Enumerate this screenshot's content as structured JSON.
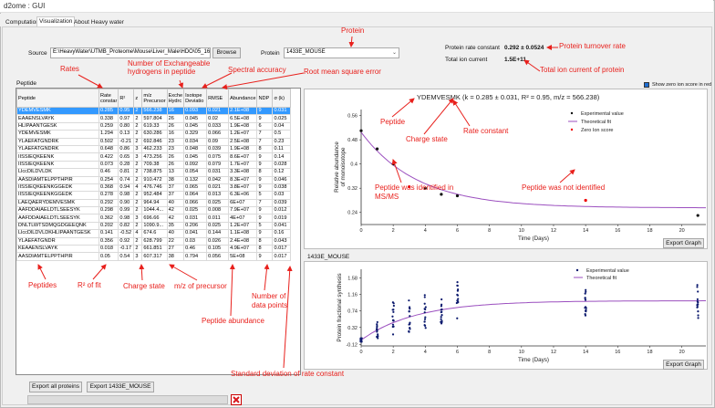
{
  "window": {
    "title": "d2ome : GUI"
  },
  "tabs": [
    {
      "label": "Computation",
      "active": false
    },
    {
      "label": "Visualization",
      "active": true
    },
    {
      "label": "About Heavy water",
      "active": false
    }
  ],
  "source": {
    "label": "Source",
    "path": "E:\\HeavyWater\\UTMB_Proteome\\Mouse\\Liver_Male\\HDO\\05_16_",
    "browse_label": "Browse"
  },
  "protein": {
    "label": "Protein",
    "selected": "1433E_MOUSE",
    "rate_label": "Protein rate constant",
    "rate_value": "0.292 ± 0.0524",
    "ion_label": "Total ion current",
    "ion_value": "1.5E+11"
  },
  "peptide_section": {
    "label": "Peptide"
  },
  "table": {
    "columns": [
      "Peptide",
      "Rate constar",
      "R²",
      "z",
      "m/z Precursor",
      "Exche Hydrc",
      "Isotope Deviatio",
      "RMSE",
      "Abundance",
      "NDP",
      "σ (k)"
    ],
    "rows": [
      [
        "YDEMVESMK",
        "0.285",
        "0.95",
        "2",
        "566.238",
        "16",
        "0.093",
        "0.021",
        "2.1E+08",
        "9",
        "0.031"
      ],
      [
        "EAAENSLVAYK",
        "0.338",
        "0.97",
        "2",
        "597.804",
        "26",
        "0.045",
        "0.02",
        "6.5E+08",
        "9",
        "0.025"
      ],
      [
        "HLIPAANTGESK",
        "0.259",
        "0.80",
        "2",
        "619.33",
        "26",
        "0.045",
        "0.033",
        "1.9E+08",
        "6",
        "0.04"
      ],
      [
        "YDEMVESMK",
        "1.294",
        "0.13",
        "2",
        "630.286",
        "16",
        "0.329",
        "0.066",
        "1.2E+07",
        "7",
        "0.5"
      ],
      [
        "YLAEFATGNDRK",
        "0.502",
        "-0.21",
        "2",
        "692.846",
        "23",
        "0.034",
        "0.09",
        "2.5E+08",
        "7",
        "0.23"
      ],
      [
        "YLAEFATGNDRK",
        "0.648",
        "0.86",
        "3",
        "462.233",
        "23",
        "0.048",
        "0.039",
        "1.9E+08",
        "8",
        "0.11"
      ],
      [
        "IISSIEQKEENK",
        "0.422",
        "0.65",
        "3",
        "473.256",
        "26",
        "0.045",
        "0.075",
        "8.6E+07",
        "9",
        "0.14"
      ],
      [
        "IISSIEQKEENK",
        "0.073",
        "0.28",
        "2",
        "709.38",
        "26",
        "0.092",
        "0.079",
        "1.7E+07",
        "9",
        "0.028"
      ],
      [
        "LlccDlLDVLDK",
        "0.46",
        "0.81",
        "2",
        "738.875",
        "13",
        "0.054",
        "0.031",
        "3.3E+08",
        "8",
        "0.12"
      ],
      [
        "AASDIAMTELPPTHPIR",
        "0.254",
        "0.74",
        "2",
        "910.472",
        "38",
        "0.132",
        "0.042",
        "8.3E+07",
        "9",
        "0.046"
      ],
      [
        "IISSIEQKEENKGGEDK",
        "0.368",
        "0.94",
        "4",
        "476.746",
        "37",
        "0.065",
        "0.021",
        "3.8E+07",
        "9",
        "0.038"
      ],
      [
        "IISSIEQKEENKGGEDK",
        "0.278",
        "0.98",
        "2",
        "952.484",
        "37",
        "0.064",
        "0.013",
        "6.3E+06",
        "5",
        "0.03"
      ],
      [
        "LAEQAERYDEMVESMK",
        "0.292",
        "0.90",
        "2",
        "964.94",
        "40",
        "0.066",
        "0.025",
        "6E+07",
        "7",
        "0.039"
      ],
      [
        "AAFDDAIAELDTLSEESYK",
        "0.298",
        "0.99",
        "2",
        "1044.4...",
        "42",
        "0.025",
        "0.008",
        "7.9E+07",
        "9",
        "0.012"
      ],
      [
        "AAFDDAIAELDTLSEESYK",
        "0.362",
        "0.98",
        "3",
        "696.66",
        "42",
        "0.031",
        "0.011",
        "4E+07",
        "9",
        "0.019"
      ],
      [
        "DNLTLWTSDMQGDGEEQNK",
        "0.202",
        "0.82",
        "2",
        "1090.9...",
        "35",
        "0.206",
        "0.025",
        "1.2E+07",
        "5",
        "0.041"
      ],
      [
        "LlccDlLDVLDKHLIPAANTGESK",
        "0.141",
        "-0.52",
        "4",
        "674.6",
        "40",
        "0.041",
        "0.144",
        "1.1E+08",
        "9",
        "0.16"
      ],
      [
        "YLAEFATGNDR",
        "0.356",
        "0.92",
        "2",
        "628.799",
        "22",
        "0.03",
        "0.026",
        "2.4E+08",
        "8",
        "0.043"
      ],
      [
        "KEAAENSLVAYK",
        "0.018",
        "-0.17",
        "2",
        "661.851",
        "27",
        "0.46",
        "0.105",
        "4.9E+07",
        "8",
        "0.017"
      ],
      [
        "AASDIAMTELPPTHPIR",
        "0.05",
        "0.54",
        "3",
        "607.317",
        "38",
        "0.794",
        "0.056",
        "5E+08",
        "9",
        "0.017"
      ]
    ]
  },
  "zero_ion_checkbox": {
    "label": "Show zero ion score in red",
    "checked": true
  },
  "plot1": {
    "title": "YDEMVESMK",
    "subtitle": " (k = 0.285 ± 0.031, R² = 0.95, m/z = 566.238)",
    "legend": [
      "Experimental value",
      "Theoretical fit",
      "Zero Ion score"
    ],
    "export_label": "Export Graph"
  },
  "plot2": {
    "title": "1433E_MOUSE",
    "legend": [
      "Experimental value",
      "Theoretical fit"
    ],
    "export_label": "Export Graph"
  },
  "buttons": {
    "export_all": "Export all proteins",
    "export_protein": "Export 1433E_MOUSE"
  },
  "annotations": {
    "protein": "Protein",
    "turnover": "Protein turnover rate",
    "total_ion": "Total ion current of protein",
    "rates": "Rates",
    "exch_h": "Number of Exchangeable hydrogens in peptide",
    "spectral": "Spectral accuracy",
    "rmse": "Root mean square error",
    "peptide": "Peptide",
    "charge": "Charge state",
    "rate_constant": "Rate constant",
    "identified": "Peptide was identified in MS/MS",
    "not_identified": "Peptide was not identified",
    "peptides": "Peptides",
    "r2": "R² of fit",
    "charge2": "Charge state",
    "mz": "m/z of precursor",
    "abundance": "Peptide abundance",
    "ndp": "Number of data points",
    "stddev": "Standard deviation of rate constant"
  },
  "colors": {
    "accent_red": "#e8201c",
    "selection": "#3399ff",
    "fit_line": "#9b4fbf",
    "points": "#0c1a6e"
  },
  "chart_data": [
    {
      "type": "scatter",
      "title": "YDEMVESMK (k = 0.285 ± 0.031, R² = 0.95, m/z = 566.238)",
      "xlabel": "Time (Days)",
      "ylabel": "Relative abundance of monoisotope",
      "xlim": [
        0,
        21.5
      ],
      "ylim": [
        0.2,
        0.58
      ],
      "xticks": [
        0,
        2,
        4,
        6,
        8,
        10,
        12,
        14,
        16,
        18,
        20
      ],
      "yticks": [
        0.24,
        0.32,
        0.4,
        0.48,
        0.56
      ],
      "series": [
        {
          "name": "Experimental value",
          "x": [
            0,
            1,
            2,
            4,
            5,
            6,
            21
          ],
          "y": [
            0.51,
            0.45,
            0.4,
            0.32,
            0.3,
            0.295,
            0.23
          ]
        },
        {
          "name": "Zero Ion score",
          "x": [
            3,
            14
          ],
          "y": [
            0.325,
            0.28
          ]
        }
      ],
      "fit": {
        "name": "Theoretical fit",
        "start": 0.505,
        "end": 0.255,
        "k": 0.285
      }
    },
    {
      "type": "scatter",
      "title": "1433E_MOUSE",
      "xlabel": "Time (Days)",
      "ylabel": "Protein fractional synthesis",
      "xlim": [
        0,
        21.5
      ],
      "ylim": [
        -0.15,
        1.8
      ],
      "xticks": [
        0,
        2,
        4,
        6,
        8,
        10,
        12,
        14,
        16,
        18,
        20
      ],
      "yticks": [
        -0.12,
        0.32,
        0.74,
        1.16,
        1.58
      ],
      "yticklabels": [
        "-0.12",
        "0.32",
        "0.74",
        "1.16",
        "1.58"
      ],
      "series": [
        {
          "name": "Experimental value",
          "x_groups": [
            0,
            1,
            2,
            3,
            4,
            5,
            6,
            14,
            21
          ],
          "spread": [
            [
              -0.05,
              0.05
            ],
            [
              0.0,
              0.6
            ],
            [
              0.1,
              1.0
            ],
            [
              0.2,
              1.1
            ],
            [
              0.3,
              1.3
            ],
            [
              0.4,
              1.1
            ],
            [
              0.5,
              1.5
            ],
            [
              0.6,
              1.3
            ],
            [
              0.5,
              1.5
            ]
          ]
        }
      ],
      "fit": {
        "name": "Theoretical fit",
        "plateau": 1.0,
        "k": 0.292
      }
    }
  ]
}
